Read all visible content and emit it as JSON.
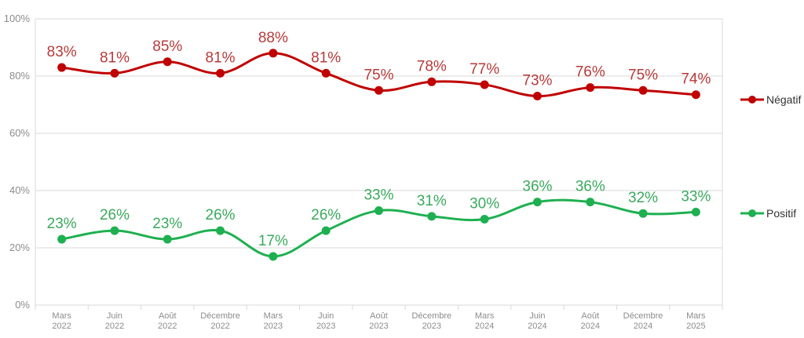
{
  "chart_data": {
    "type": "line",
    "categories": [
      [
        "Mars",
        "2022"
      ],
      [
        "Juin",
        "2022"
      ],
      [
        "Août",
        "2022"
      ],
      [
        "Décembre",
        "2022"
      ],
      [
        "Mars",
        "2023"
      ],
      [
        "Juin",
        "2023"
      ],
      [
        "Août",
        "2023"
      ],
      [
        "Décembre",
        "2023"
      ],
      [
        "Mars",
        "2024"
      ],
      [
        "Juin",
        "2024"
      ],
      [
        "Août",
        "2024"
      ],
      [
        "Décembre",
        "2024"
      ],
      [
        "Mars",
        "2025"
      ]
    ],
    "y_ticks": [
      "0%",
      "20%",
      "40%",
      "60%",
      "80%",
      "100%"
    ],
    "ylim": [
      0,
      100
    ],
    "grid": true,
    "legend_position": "right",
    "series": [
      {
        "name": "Négatif",
        "color": "#c00000",
        "label_color": "#b83a3a",
        "values": [
          83,
          81,
          85,
          81,
          88,
          81,
          75,
          78,
          77,
          73,
          76,
          75,
          73.5
        ],
        "labels": [
          "83%",
          "81%",
          "85%",
          "81%",
          "88%",
          "81%",
          "75%",
          "78%",
          "77%",
          "73%",
          "76%",
          "75%",
          "74%"
        ]
      },
      {
        "name": "Positif",
        "color": "#1eb050",
        "label_color": "#3aaa5c",
        "values": [
          23,
          26,
          23,
          26,
          17,
          26,
          33,
          31,
          30,
          36,
          36,
          32,
          32.5
        ],
        "labels": [
          "23%",
          "26%",
          "23%",
          "26%",
          "17%",
          "26%",
          "33%",
          "31%",
          "30%",
          "36%",
          "36%",
          "32%",
          "33%"
        ]
      }
    ]
  }
}
